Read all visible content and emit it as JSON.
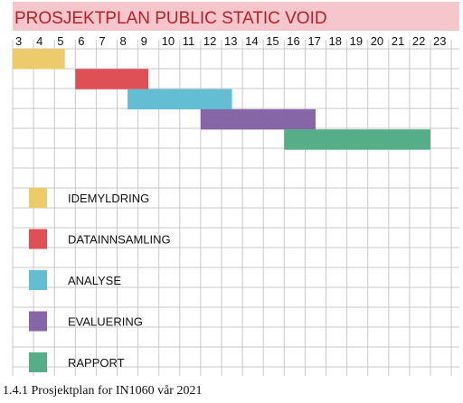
{
  "chart_data": {
    "type": "gantt",
    "title": "PROSJEKTPLAN PUBLIC STATIC VOID",
    "x_ticks": [
      "3",
      "4",
      "5",
      "6",
      "7",
      "8",
      "9",
      "10",
      "11",
      "12",
      "13",
      "14",
      "15",
      "16",
      "17",
      "18",
      "19",
      "20",
      "21",
      "22",
      "23"
    ],
    "tasks": [
      {
        "name": "IDEMYLDRING",
        "start": 3,
        "end": 5.5,
        "color": "#EDCB6B"
      },
      {
        "name": "DATAINNSAMLING",
        "start": 6,
        "end": 9.5,
        "color": "#DF4F56"
      },
      {
        "name": "ANALYSE",
        "start": 8.5,
        "end": 13.5,
        "color": "#63BDD3"
      },
      {
        "name": "EVALUERING",
        "start": 12,
        "end": 17.5,
        "color": "#8766A7"
      },
      {
        "name": "RAPPORT",
        "start": 16,
        "end": 23,
        "color": "#55AE87"
      }
    ],
    "title_bg": "#F5C6CC",
    "title_color": "#B82028",
    "grid_color": "#C8C8C8"
  },
  "caption": "1.4.1 Prosjektplan for IN1060 vår 2021"
}
